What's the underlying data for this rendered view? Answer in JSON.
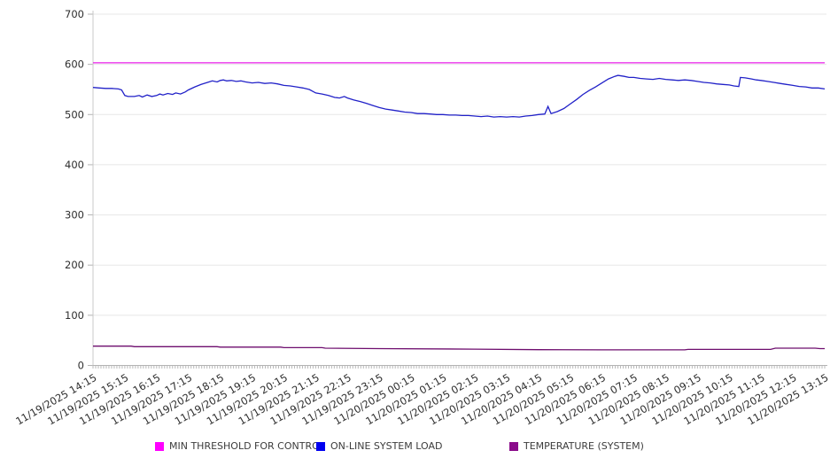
{
  "chart_data": {
    "type": "line",
    "title": "",
    "xlabel": "",
    "ylabel": "",
    "x_range": [
      0,
      23
    ],
    "ylim": [
      0,
      700
    ],
    "y_ticks": [
      0,
      100,
      200,
      300,
      400,
      500,
      600,
      700
    ],
    "x_minor_ticks_per_hour": 12,
    "grid": "horizontal-light",
    "legend_position": "bottom",
    "x_tick_labels": [
      "11/19/2025 14:15",
      "11/19/2025 15:15",
      "11/19/2025 16:15",
      "11/19/2025 17:15",
      "11/19/2025 18:15",
      "11/19/2025 19:15",
      "11/19/2025 20:15",
      "11/19/2025 21:15",
      "11/19/2025 22:15",
      "11/19/2025 23:15",
      "11/20/2025 00:15",
      "11/20/2025 01:15",
      "11/20/2025 02:15",
      "11/20/2025 03:15",
      "11/20/2025 04:15",
      "11/20/2025 05:15",
      "11/20/2025 06:15",
      "11/20/2025 07:15",
      "11/20/2025 08:15",
      "11/20/2025 09:15",
      "11/20/2025 10:15",
      "11/20/2025 11:15",
      "11/20/2025 12:15",
      "11/20/2025 13:15"
    ],
    "series": [
      {
        "name": "MIN THRESHOLD FOR CONTROL",
        "color": "#e81ce8",
        "legend_color": "#ff00ff",
        "points": [
          [
            0,
            603
          ],
          [
            23,
            603
          ]
        ]
      },
      {
        "name": "ON-LINE SYSTEM LOAD",
        "color": "#2121c8",
        "legend_color": "#0000f0",
        "points": [
          [
            0,
            554
          ],
          [
            0.2,
            553
          ],
          [
            0.4,
            552
          ],
          [
            0.6,
            552
          ],
          [
            0.8,
            551
          ],
          [
            0.9,
            549
          ],
          [
            1.0,
            538
          ],
          [
            1.1,
            536
          ],
          [
            1.3,
            536
          ],
          [
            1.45,
            538
          ],
          [
            1.55,
            535
          ],
          [
            1.7,
            539
          ],
          [
            1.85,
            536
          ],
          [
            2.0,
            538
          ],
          [
            2.1,
            541
          ],
          [
            2.2,
            539
          ],
          [
            2.35,
            542
          ],
          [
            2.5,
            540
          ],
          [
            2.6,
            543
          ],
          [
            2.75,
            541
          ],
          [
            2.9,
            545
          ],
          [
            3.0,
            549
          ],
          [
            3.2,
            555
          ],
          [
            3.4,
            560
          ],
          [
            3.6,
            564
          ],
          [
            3.75,
            567
          ],
          [
            3.9,
            565
          ],
          [
            4.0,
            568
          ],
          [
            4.1,
            569
          ],
          [
            4.2,
            567
          ],
          [
            4.35,
            568
          ],
          [
            4.5,
            566
          ],
          [
            4.65,
            567
          ],
          [
            4.8,
            565
          ],
          [
            5.0,
            563
          ],
          [
            5.2,
            564
          ],
          [
            5.4,
            562
          ],
          [
            5.6,
            563
          ],
          [
            5.8,
            561
          ],
          [
            6.0,
            558
          ],
          [
            6.2,
            557
          ],
          [
            6.4,
            555
          ],
          [
            6.6,
            553
          ],
          [
            6.8,
            550
          ],
          [
            7.0,
            543
          ],
          [
            7.2,
            541
          ],
          [
            7.4,
            538
          ],
          [
            7.6,
            534
          ],
          [
            7.75,
            533
          ],
          [
            7.9,
            536
          ],
          [
            8.0,
            533
          ],
          [
            8.2,
            529
          ],
          [
            8.4,
            526
          ],
          [
            8.6,
            522
          ],
          [
            8.8,
            518
          ],
          [
            9.0,
            514
          ],
          [
            9.2,
            511
          ],
          [
            9.4,
            509
          ],
          [
            9.6,
            507
          ],
          [
            9.8,
            505
          ],
          [
            10.0,
            504
          ],
          [
            10.2,
            502
          ],
          [
            10.4,
            502
          ],
          [
            10.6,
            501
          ],
          [
            10.8,
            500
          ],
          [
            11.0,
            500
          ],
          [
            11.2,
            499
          ],
          [
            11.4,
            499
          ],
          [
            11.6,
            498
          ],
          [
            11.8,
            498
          ],
          [
            12.0,
            497
          ],
          [
            12.2,
            496
          ],
          [
            12.4,
            497
          ],
          [
            12.6,
            495
          ],
          [
            12.8,
            496
          ],
          [
            13.0,
            495
          ],
          [
            13.2,
            496
          ],
          [
            13.4,
            495
          ],
          [
            13.6,
            497
          ],
          [
            13.8,
            498
          ],
          [
            14.0,
            500
          ],
          [
            14.2,
            501
          ],
          [
            14.3,
            516
          ],
          [
            14.4,
            502
          ],
          [
            14.6,
            506
          ],
          [
            14.8,
            512
          ],
          [
            15.0,
            521
          ],
          [
            15.2,
            530
          ],
          [
            15.4,
            540
          ],
          [
            15.6,
            548
          ],
          [
            15.8,
            555
          ],
          [
            16.0,
            563
          ],
          [
            16.2,
            571
          ],
          [
            16.4,
            576
          ],
          [
            16.5,
            578
          ],
          [
            16.7,
            576
          ],
          [
            16.85,
            574
          ],
          [
            17.0,
            574
          ],
          [
            17.2,
            572
          ],
          [
            17.4,
            571
          ],
          [
            17.6,
            570
          ],
          [
            17.8,
            572
          ],
          [
            18.0,
            570
          ],
          [
            18.2,
            569
          ],
          [
            18.4,
            568
          ],
          [
            18.6,
            569
          ],
          [
            18.8,
            568
          ],
          [
            19.0,
            566
          ],
          [
            19.2,
            564
          ],
          [
            19.4,
            563
          ],
          [
            19.6,
            561
          ],
          [
            19.8,
            560
          ],
          [
            20.0,
            559
          ],
          [
            20.15,
            557
          ],
          [
            20.3,
            556
          ],
          [
            20.35,
            574
          ],
          [
            20.5,
            573
          ],
          [
            20.7,
            571
          ],
          [
            20.85,
            569
          ],
          [
            21.0,
            568
          ],
          [
            21.2,
            566
          ],
          [
            21.4,
            564
          ],
          [
            21.6,
            562
          ],
          [
            21.8,
            560
          ],
          [
            22.0,
            558
          ],
          [
            22.2,
            556
          ],
          [
            22.4,
            555
          ],
          [
            22.6,
            553
          ],
          [
            22.8,
            553
          ],
          [
            23.0,
            551
          ]
        ]
      },
      {
        "name": "TEMPERATURE (SYSTEM)",
        "color": "#6e0d6e",
        "legend_color": "#8a0b8a",
        "points": [
          [
            0,
            38.5
          ],
          [
            1.2,
            38.5
          ],
          [
            1.3,
            37.5
          ],
          [
            3.9,
            37.5
          ],
          [
            4.0,
            36.5
          ],
          [
            5.9,
            36.5
          ],
          [
            6.0,
            35.5
          ],
          [
            7.2,
            35.5
          ],
          [
            7.3,
            34.5
          ],
          [
            9.0,
            33.5
          ],
          [
            12.0,
            32.5
          ],
          [
            14.0,
            31.5
          ],
          [
            16.0,
            31
          ],
          [
            18.6,
            31
          ],
          [
            18.7,
            32
          ],
          [
            21.3,
            32
          ],
          [
            21.45,
            34.5
          ],
          [
            22.7,
            34.5
          ],
          [
            22.85,
            33.5
          ],
          [
            23,
            33.5
          ]
        ]
      }
    ]
  }
}
